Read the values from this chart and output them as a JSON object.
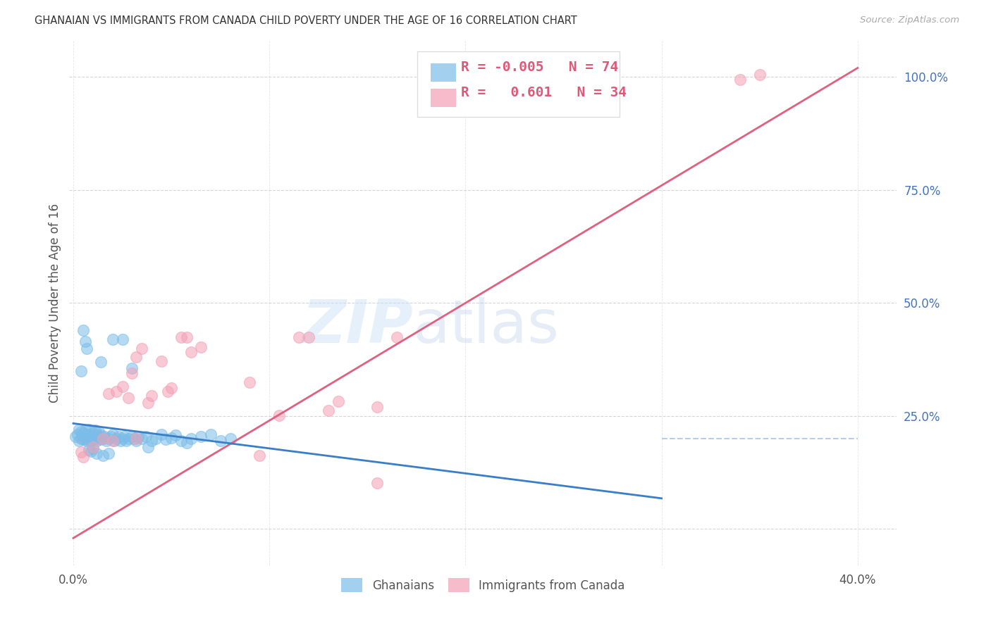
{
  "title": "GHANAIAN VS IMMIGRANTS FROM CANADA CHILD POVERTY UNDER THE AGE OF 16 CORRELATION CHART",
  "source": "Source: ZipAtlas.com",
  "ylabel": "Child Poverty Under the Age of 16",
  "xlim": [
    -0.002,
    0.42
  ],
  "ylim": [
    -0.08,
    1.08
  ],
  "ghanaian_color": "#7bbde8",
  "canada_color": "#f4a0b5",
  "ghanaian_R": -0.005,
  "ghanaian_N": 74,
  "canada_R": 0.601,
  "canada_N": 34,
  "watermark_zip": "ZIP",
  "watermark_atlas": "atlas",
  "background_color": "#ffffff",
  "grid_color": "#cccccc",
  "title_color": "#333333",
  "right_tick_color": "#4472c4",
  "ghanaian_line_color": "#3a7ec8",
  "canada_line_color": "#e06080",
  "ref_line_color": "#a0c4e8",
  "legend_ghanaian": "Ghanaians",
  "legend_canada": "Immigrants from Canada",
  "ghanaian_scatter_x": [
    0.001,
    0.002,
    0.003,
    0.003,
    0.004,
    0.004,
    0.005,
    0.005,
    0.006,
    0.006,
    0.007,
    0.007,
    0.008,
    0.008,
    0.009,
    0.009,
    0.01,
    0.01,
    0.011,
    0.011,
    0.012,
    0.012,
    0.013,
    0.013,
    0.014,
    0.014,
    0.015,
    0.016,
    0.017,
    0.018,
    0.019,
    0.02,
    0.021,
    0.022,
    0.023,
    0.024,
    0.025,
    0.026,
    0.027,
    0.028,
    0.03,
    0.031,
    0.032,
    0.033,
    0.035,
    0.037,
    0.038,
    0.04,
    0.042,
    0.045,
    0.047,
    0.05,
    0.052,
    0.055,
    0.058,
    0.06,
    0.065,
    0.07,
    0.075,
    0.08,
    0.004,
    0.005,
    0.006,
    0.007,
    0.008,
    0.009,
    0.01,
    0.012,
    0.015,
    0.018,
    0.02,
    0.025,
    0.014,
    0.03
  ],
  "ghanaian_scatter_y": [
    0.205,
    0.21,
    0.195,
    0.22,
    0.2,
    0.215,
    0.198,
    0.212,
    0.2,
    0.218,
    0.195,
    0.21,
    0.205,
    0.22,
    0.195,
    0.21,
    0.198,
    0.212,
    0.2,
    0.218,
    0.195,
    0.21,
    0.205,
    0.215,
    0.198,
    0.208,
    0.2,
    0.205,
    0.195,
    0.2,
    0.205,
    0.21,
    0.195,
    0.2,
    0.205,
    0.195,
    0.2,
    0.205,
    0.195,
    0.2,
    0.205,
    0.2,
    0.195,
    0.205,
    0.2,
    0.205,
    0.182,
    0.195,
    0.2,
    0.21,
    0.198,
    0.202,
    0.208,
    0.195,
    0.19,
    0.2,
    0.205,
    0.21,
    0.195,
    0.2,
    0.35,
    0.44,
    0.415,
    0.4,
    0.175,
    0.172,
    0.178,
    0.168,
    0.162,
    0.168,
    0.42,
    0.42,
    0.37,
    0.355
  ],
  "canada_scatter_x": [
    0.004,
    0.005,
    0.01,
    0.015,
    0.018,
    0.02,
    0.022,
    0.025,
    0.028,
    0.03,
    0.032,
    0.035,
    0.038,
    0.04,
    0.045,
    0.048,
    0.05,
    0.055,
    0.058,
    0.06,
    0.065,
    0.09,
    0.095,
    0.105,
    0.115,
    0.12,
    0.13,
    0.135,
    0.155,
    0.165,
    0.34,
    0.35,
    0.032,
    0.155
  ],
  "canada_scatter_y": [
    0.17,
    0.16,
    0.182,
    0.2,
    0.3,
    0.195,
    0.305,
    0.315,
    0.29,
    0.345,
    0.38,
    0.4,
    0.28,
    0.295,
    0.372,
    0.305,
    0.312,
    0.425,
    0.425,
    0.392,
    0.402,
    0.325,
    0.162,
    0.252,
    0.425,
    0.425,
    0.262,
    0.282,
    0.102,
    0.425,
    0.995,
    1.005,
    0.2,
    0.27
  ]
}
